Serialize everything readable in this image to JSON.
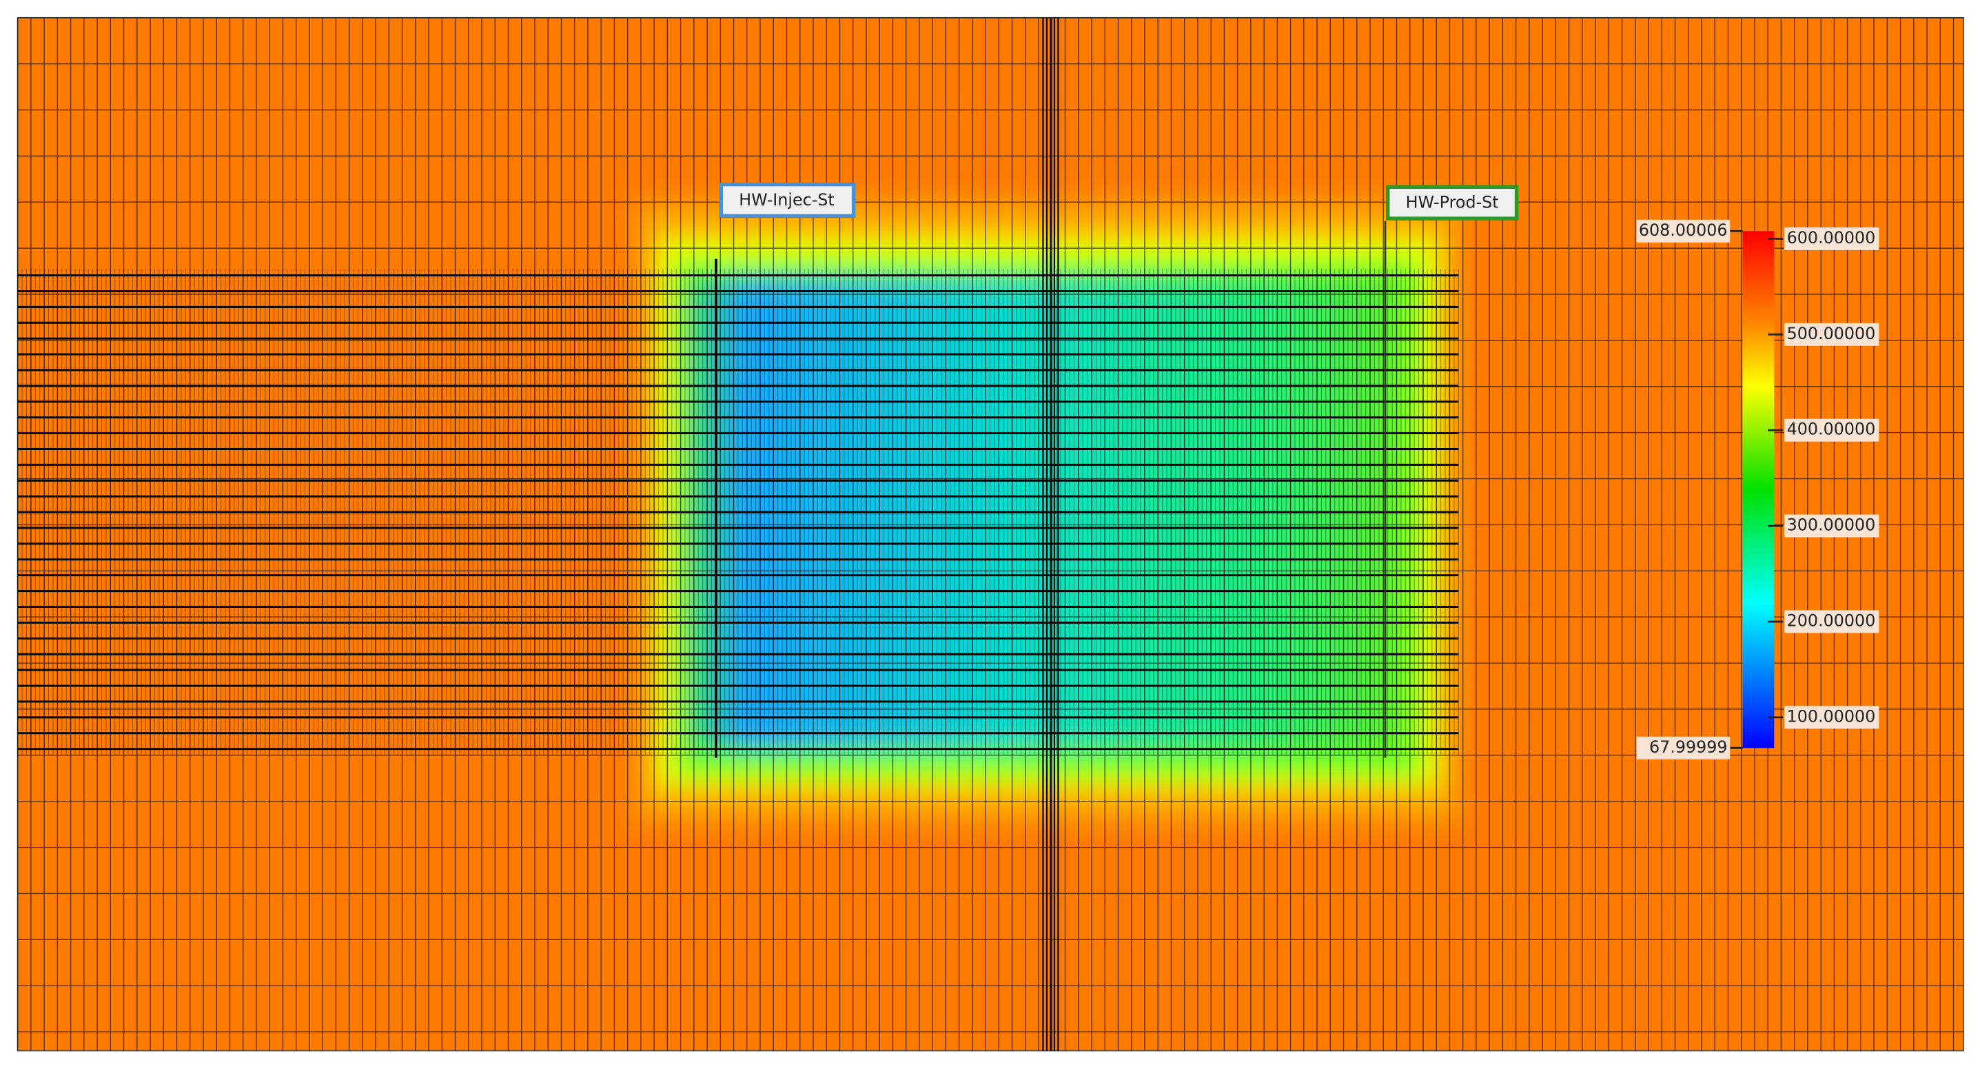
{
  "wells": [
    {
      "label": "HW-Injec-St"
    },
    {
      "label": "HW-Prod-St"
    }
  ],
  "colorbar": {
    "max": 608.00006,
    "min": 67.99999,
    "ticks": [
      {
        "value": 600,
        "label": "600.00000"
      },
      {
        "value": 500,
        "label": "500.00000"
      },
      {
        "value": 400,
        "label": "400.00000"
      },
      {
        "value": 300,
        "label": "300.00000"
      },
      {
        "value": 200,
        "label": "200.00000"
      },
      {
        "value": 100,
        "label": "100.00000"
      }
    ]
  }
}
